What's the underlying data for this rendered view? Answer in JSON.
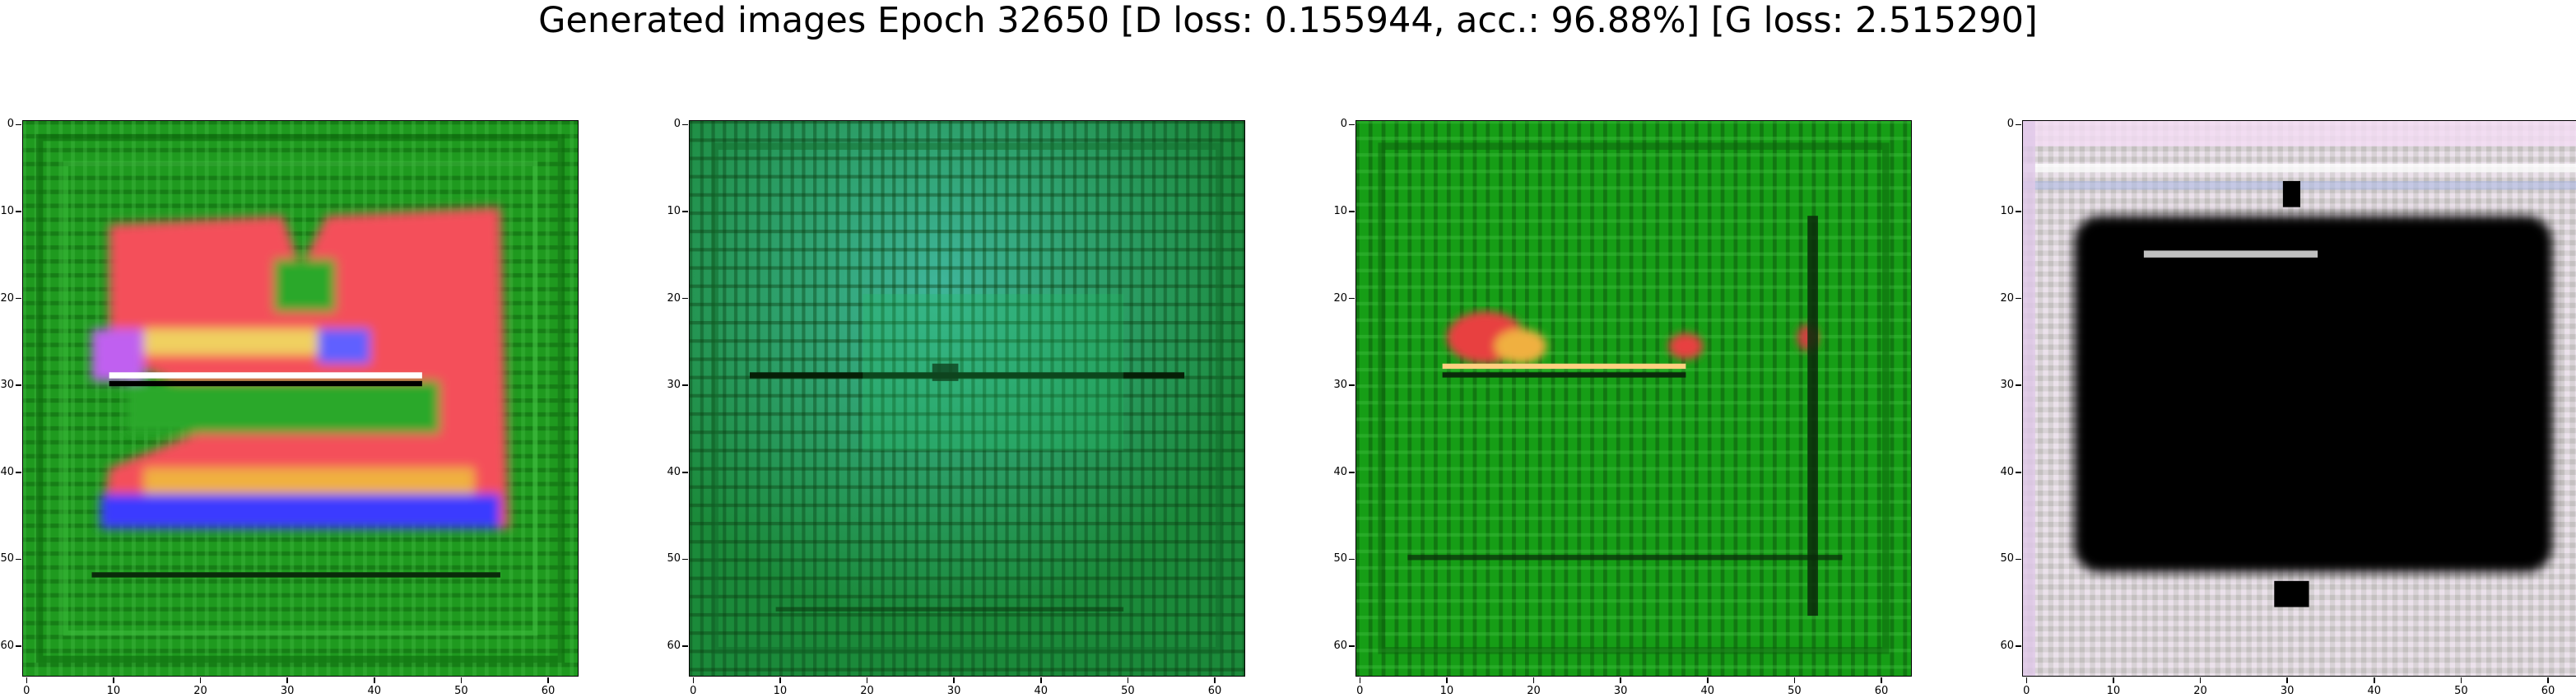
{
  "figure": {
    "title": "Generated images Epoch 32650 [D loss: 0.155944, acc.: 96.88%] [G loss: 2.515290]"
  },
  "axes": {
    "ticks": [
      0,
      10,
      20,
      30,
      40,
      50,
      60
    ],
    "extent": [
      -0.5,
      63.5
    ]
  },
  "panels": [
    {
      "name": "sample-1",
      "background": "#1f9a1f",
      "description_colors": [
        "#2aa82a",
        "#f4505a",
        "#3a3aff",
        "#ffffff"
      ]
    },
    {
      "name": "sample-2",
      "background": "#1b8a3a",
      "description_colors": [
        "#2fa07a",
        "#20c060",
        "#0a3a10"
      ]
    },
    {
      "name": "sample-3",
      "background": "#169e16",
      "description_colors": [
        "#e84040",
        "#ffd080",
        "#0a2a0a"
      ]
    },
    {
      "name": "sample-4",
      "background": "#d8d2d6",
      "description_colors": [
        "#000000",
        "#f0e8f0",
        "#c8c4c0"
      ]
    }
  ]
}
